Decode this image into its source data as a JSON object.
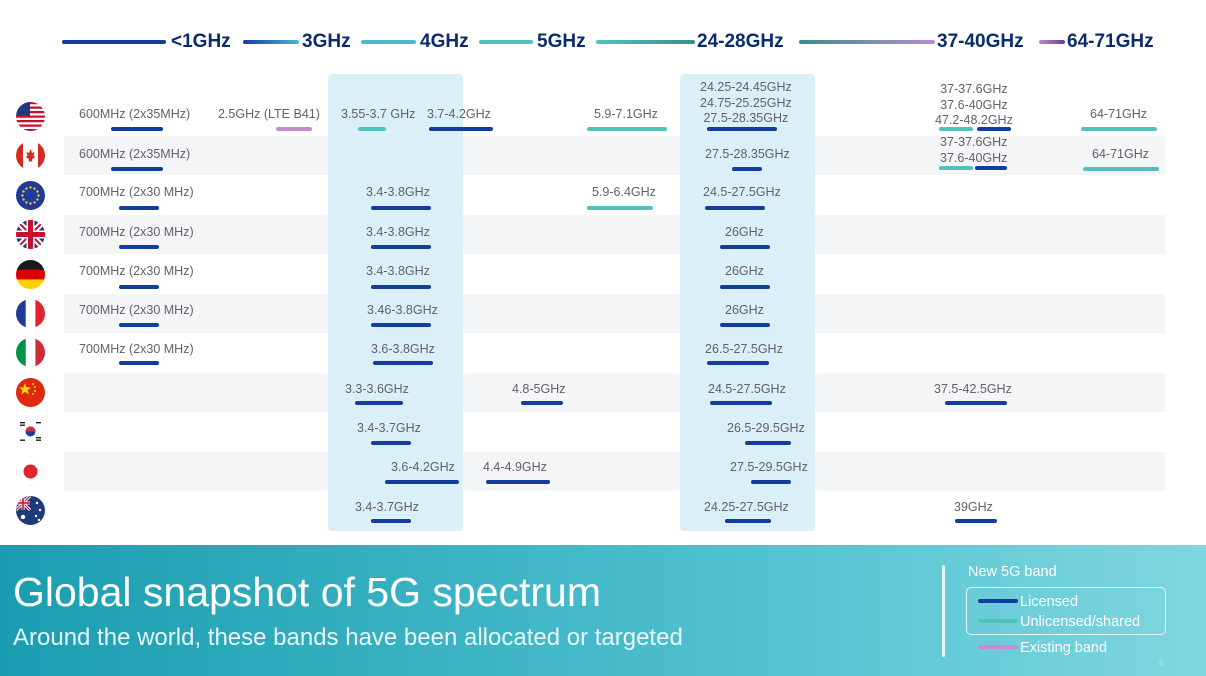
{
  "colors": {
    "licensed": "#123d9c",
    "unlicensed": "#52c1bd",
    "existing": "#c68bce",
    "header_line_dark": "#123d9c",
    "header_line_light": "#4cb8d8",
    "header_line_teal": "#3a8f8a",
    "header_line_purple": "#b88dcc",
    "highlight_column": "#dbeff8",
    "footer": "#2aa7b9"
  },
  "header": {
    "ranges": [
      "<1GHz",
      "3GHz",
      "4GHz",
      "5GHz",
      "24-28GHz",
      "37-40GHz",
      "64-71GHz"
    ]
  },
  "chart_data": {
    "type": "table",
    "highlighted_columns": [
      "3GHz-4GHz",
      "24-28GHz"
    ],
    "rows": [
      {
        "flag": "us-flag",
        "bands": [
          {
            "label": "600MHz (2x35MHz)",
            "type": "licensed"
          },
          {
            "label": "2.5GHz (LTE B41)",
            "type": "existing"
          },
          {
            "label": "3.55-3.7 GHz",
            "type": "unlicensed"
          },
          {
            "label": "3.7-4.2GHz",
            "type": "licensed"
          },
          {
            "label": "5.9-7.1GHz",
            "type": "unlicensed"
          },
          {
            "label": "24.25-24.45GHz\n24.75-25.25GHz\n27.5-28.35GHz",
            "type": "licensed"
          },
          {
            "label": "37-37.6GHz\n37.6-40GHz\n47.2-48.2GHz",
            "type": "unlicensed+licensed"
          },
          {
            "label": "64-71GHz",
            "type": "unlicensed"
          }
        ]
      },
      {
        "flag": "canada-flag",
        "bands": [
          {
            "label": "600MHz (2x35MHz)",
            "type": "licensed"
          },
          {
            "label": "27.5-28.35GHz",
            "type": "licensed"
          },
          {
            "label": "37-37.6GHz\n37.6-40GHz",
            "type": "unlicensed+licensed"
          },
          {
            "label": "64-71GHz",
            "type": "unlicensed"
          }
        ]
      },
      {
        "flag": "eu-flag",
        "bands": [
          {
            "label": "700MHz (2x30 MHz)",
            "type": "licensed"
          },
          {
            "label": "3.4-3.8GHz",
            "type": "licensed"
          },
          {
            "label": "5.9-6.4GHz",
            "type": "unlicensed"
          },
          {
            "label": "24.5-27.5GHz",
            "type": "licensed"
          }
        ]
      },
      {
        "flag": "uk-flag",
        "bands": [
          {
            "label": "700MHz (2x30 MHz)",
            "type": "licensed"
          },
          {
            "label": "3.4-3.8GHz",
            "type": "licensed"
          },
          {
            "label": "26GHz",
            "type": "licensed"
          }
        ]
      },
      {
        "flag": "germany-flag",
        "bands": [
          {
            "label": "700MHz (2x30 MHz)",
            "type": "licensed"
          },
          {
            "label": "3.4-3.8GHz",
            "type": "licensed"
          },
          {
            "label": "26GHz",
            "type": "licensed"
          }
        ]
      },
      {
        "flag": "france-flag",
        "bands": [
          {
            "label": "700MHz (2x30 MHz)",
            "type": "licensed"
          },
          {
            "label": "3.46-3.8GHz",
            "type": "licensed"
          },
          {
            "label": "26GHz",
            "type": "licensed"
          }
        ]
      },
      {
        "flag": "italy-flag",
        "bands": [
          {
            "label": "700MHz (2x30 MHz)",
            "type": "licensed"
          },
          {
            "label": "3.6-3.8GHz",
            "type": "licensed"
          },
          {
            "label": "26.5-27.5GHz",
            "type": "licensed"
          }
        ]
      },
      {
        "flag": "china-flag",
        "bands": [
          {
            "label": "3.3-3.6GHz",
            "type": "licensed"
          },
          {
            "label": "4.8-5GHz",
            "type": "licensed"
          },
          {
            "label": "24.5-27.5GHz",
            "type": "licensed"
          },
          {
            "label": "37.5-42.5GHz",
            "type": "licensed"
          }
        ]
      },
      {
        "flag": "south-korea-flag",
        "bands": [
          {
            "label": "3.4-3.7GHz",
            "type": "licensed"
          },
          {
            "label": "26.5-29.5GHz",
            "type": "licensed"
          }
        ]
      },
      {
        "flag": "japan-flag",
        "bands": [
          {
            "label": "3.6-4.2GHz",
            "type": "licensed"
          },
          {
            "label": "4.4-4.9GHz",
            "type": "licensed"
          },
          {
            "label": "27.5-29.5GHz",
            "type": "licensed"
          }
        ]
      },
      {
        "flag": "australia-flag",
        "bands": [
          {
            "label": "3.4-3.7GHz",
            "type": "licensed"
          },
          {
            "label": "24.25-27.5GHz",
            "type": "licensed"
          },
          {
            "label": "39GHz",
            "type": "licensed"
          }
        ]
      }
    ]
  },
  "footer": {
    "title": "Global snapshot of 5G spectrum",
    "subtitle": "Around the world, these bands have been allocated or targeted",
    "page_number": "6"
  },
  "legend": {
    "heading": "New 5G band",
    "licensed": "Licensed",
    "unlicensed": "Unlicensed/shared",
    "existing": "Existing band"
  }
}
